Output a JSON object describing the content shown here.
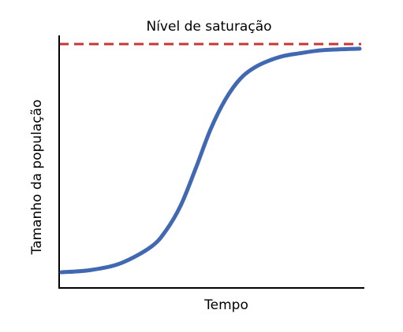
{
  "chart_data": {
    "type": "line",
    "title": "",
    "xlabel": "Tempo",
    "ylabel": "Tamanho da população",
    "xlim": [
      0,
      100
    ],
    "ylim": [
      0,
      100
    ],
    "grid": false,
    "annotations": [
      {
        "text": "Nível de saturação",
        "y": 100
      }
    ],
    "series": [
      {
        "color": "#4169b2",
        "x": [
          0,
          10,
          20,
          30,
          35,
          40,
          45,
          50,
          55,
          60,
          65,
          70,
          75,
          80,
          85,
          90,
          100
        ],
        "y": [
          1,
          2,
          5,
          12,
          19,
          30,
          46,
          63,
          76,
          85,
          90,
          93,
          95,
          96,
          97,
          97.5,
          98
        ]
      }
    ],
    "saturation_line": {
      "y": 100,
      "color": "#cc3333",
      "style": "dashed"
    },
    "colors": {
      "axis": "#000000"
    }
  }
}
